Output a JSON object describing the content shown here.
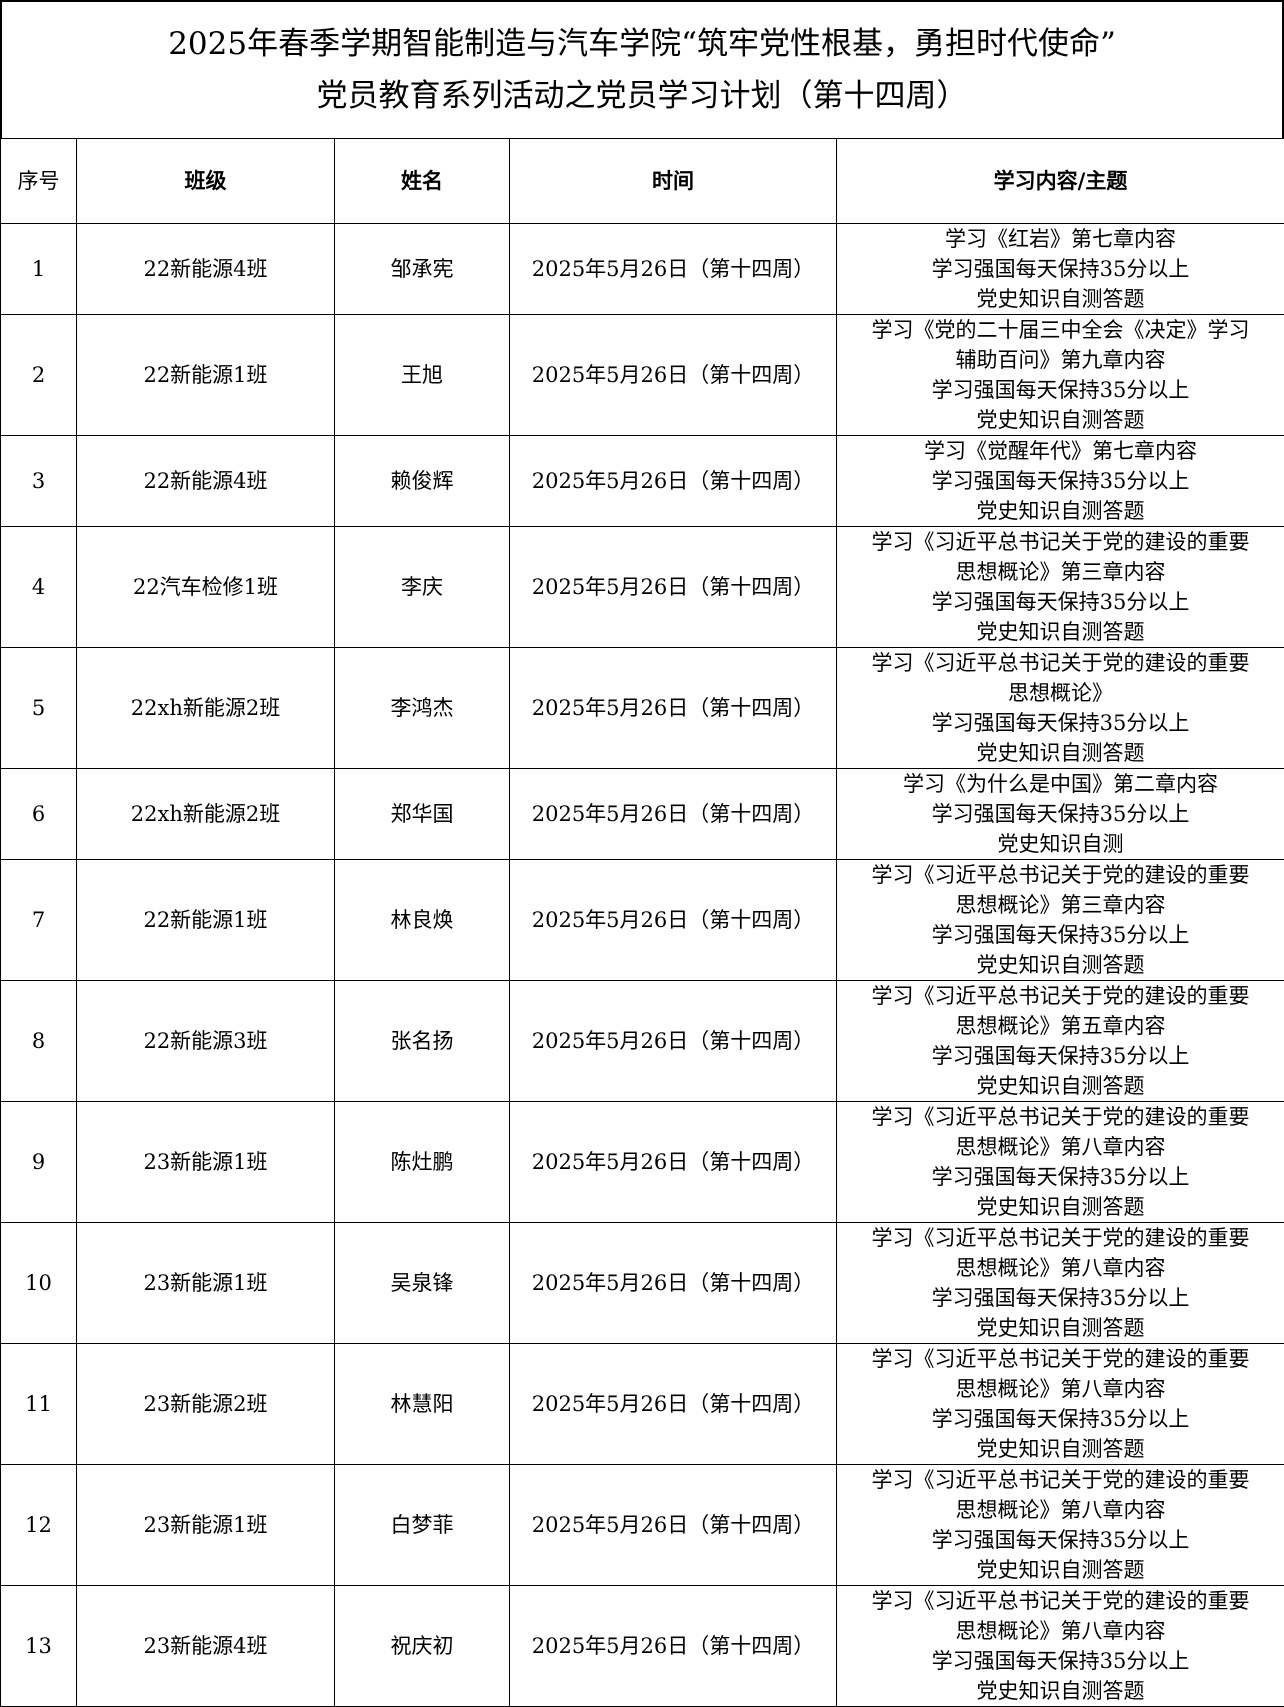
{
  "title": {
    "line1": "2025年春季学期智能制造与汽车学院“筑牢党性根基，勇担时代使命”",
    "line2": "党员教育系列活动之党员学习计划（第十四周）"
  },
  "headers": [
    "序号",
    "班级",
    "姓名",
    "时间",
    "学习内容/主题"
  ],
  "rows": [
    {
      "no": "1",
      "class": "22新能源4班",
      "name": "邹承宪",
      "time": "2025年5月26日（第十四周）",
      "content": [
        "学习《红岩》第七章内容",
        "学习强国每天保持35分以上",
        "党史知识自测答题"
      ]
    },
    {
      "no": "2",
      "class": "22新能源1班",
      "name": "王旭",
      "time": "2025年5月26日（第十四周）",
      "content": [
        "学习《党的二十届三中全会《决定》学习",
        "辅助百问》第九章内容",
        "学习强国每天保持35分以上",
        "党史知识自测答题"
      ]
    },
    {
      "no": "3",
      "class": "22新能源4班",
      "name": "赖俊辉",
      "time": "2025年5月26日（第十四周）",
      "content": [
        "学习《觉醒年代》第七章内容",
        "学习强国每天保持35分以上",
        "党史知识自测答题"
      ]
    },
    {
      "no": "4",
      "class": "22汽车检修1班",
      "name": "李庆",
      "time": "2025年5月26日（第十四周）",
      "content": [
        "学习《习近平总书记关于党的建设的重要",
        "思想概论》第三章内容",
        "学习强国每天保持35分以上",
        "党史知识自测答题"
      ]
    },
    {
      "no": "5",
      "class": "22xh新能源2班",
      "name": "李鸿杰",
      "time": "2025年5月26日（第十四周）",
      "content": [
        "学习《习近平总书记关于党的建设的重要",
        "思想概论》",
        "学习强国每天保持35分以上",
        "党史知识自测答题"
      ]
    },
    {
      "no": "6",
      "class": "22xh新能源2班",
      "name": "郑华国",
      "time": "2025年5月26日（第十四周）",
      "content": [
        "学习《为什么是中国》第二章内容",
        "学习强国每天保持35分以上",
        "党史知识自测"
      ]
    },
    {
      "no": "7",
      "class": "22新能源1班",
      "name": "林良焕",
      "time": "2025年5月26日（第十四周）",
      "content": [
        "学习《习近平总书记关于党的建设的重要",
        "思想概论》第三章内容",
        "学习强国每天保持35分以上",
        "党史知识自测答题"
      ]
    },
    {
      "no": "8",
      "class": "22新能源3班",
      "name": "张名扬",
      "time": "2025年5月26日（第十四周）",
      "content": [
        "学习《习近平总书记关于党的建设的重要",
        "思想概论》第五章内容",
        "学习强国每天保持35分以上",
        "党史知识自测答题"
      ]
    },
    {
      "no": "9",
      "class": "23新能源1班",
      "name": "陈灶鹏",
      "time": "2025年5月26日（第十四周）",
      "content": [
        "学习《习近平总书记关于党的建设的重要",
        "思想概论》第八章内容",
        "学习强国每天保持35分以上",
        "党史知识自测答题"
      ]
    },
    {
      "no": "10",
      "class": "23新能源1班",
      "name": "吴泉锋",
      "time": "2025年5月26日（第十四周）",
      "content": [
        "学习《习近平总书记关于党的建设的重要",
        "思想概论》第八章内容",
        "学习强国每天保持35分以上",
        "党史知识自测答题"
      ]
    },
    {
      "no": "11",
      "class": "23新能源2班",
      "name": "林慧阳",
      "time": "2025年5月26日（第十四周）",
      "content": [
        "学习《习近平总书记关于党的建设的重要",
        "思想概论》第八章内容",
        "学习强国每天保持35分以上",
        "党史知识自测答题"
      ]
    },
    {
      "no": "12",
      "class": "23新能源1班",
      "name": "白梦菲",
      "time": "2025年5月26日（第十四周）",
      "content": [
        "学习《习近平总书记关于党的建设的重要",
        "思想概论》第八章内容",
        "学习强国每天保持35分以上",
        "党史知识自测答题"
      ]
    },
    {
      "no": "13",
      "class": "23新能源4班",
      "name": "祝庆初",
      "time": "2025年5月26日（第十四周）",
      "content": [
        "学习《习近平总书记关于党的建设的重要",
        "思想概论》第八章内容",
        "学习强国每天保持35分以上",
        "党史知识自测答题"
      ]
    }
  ]
}
